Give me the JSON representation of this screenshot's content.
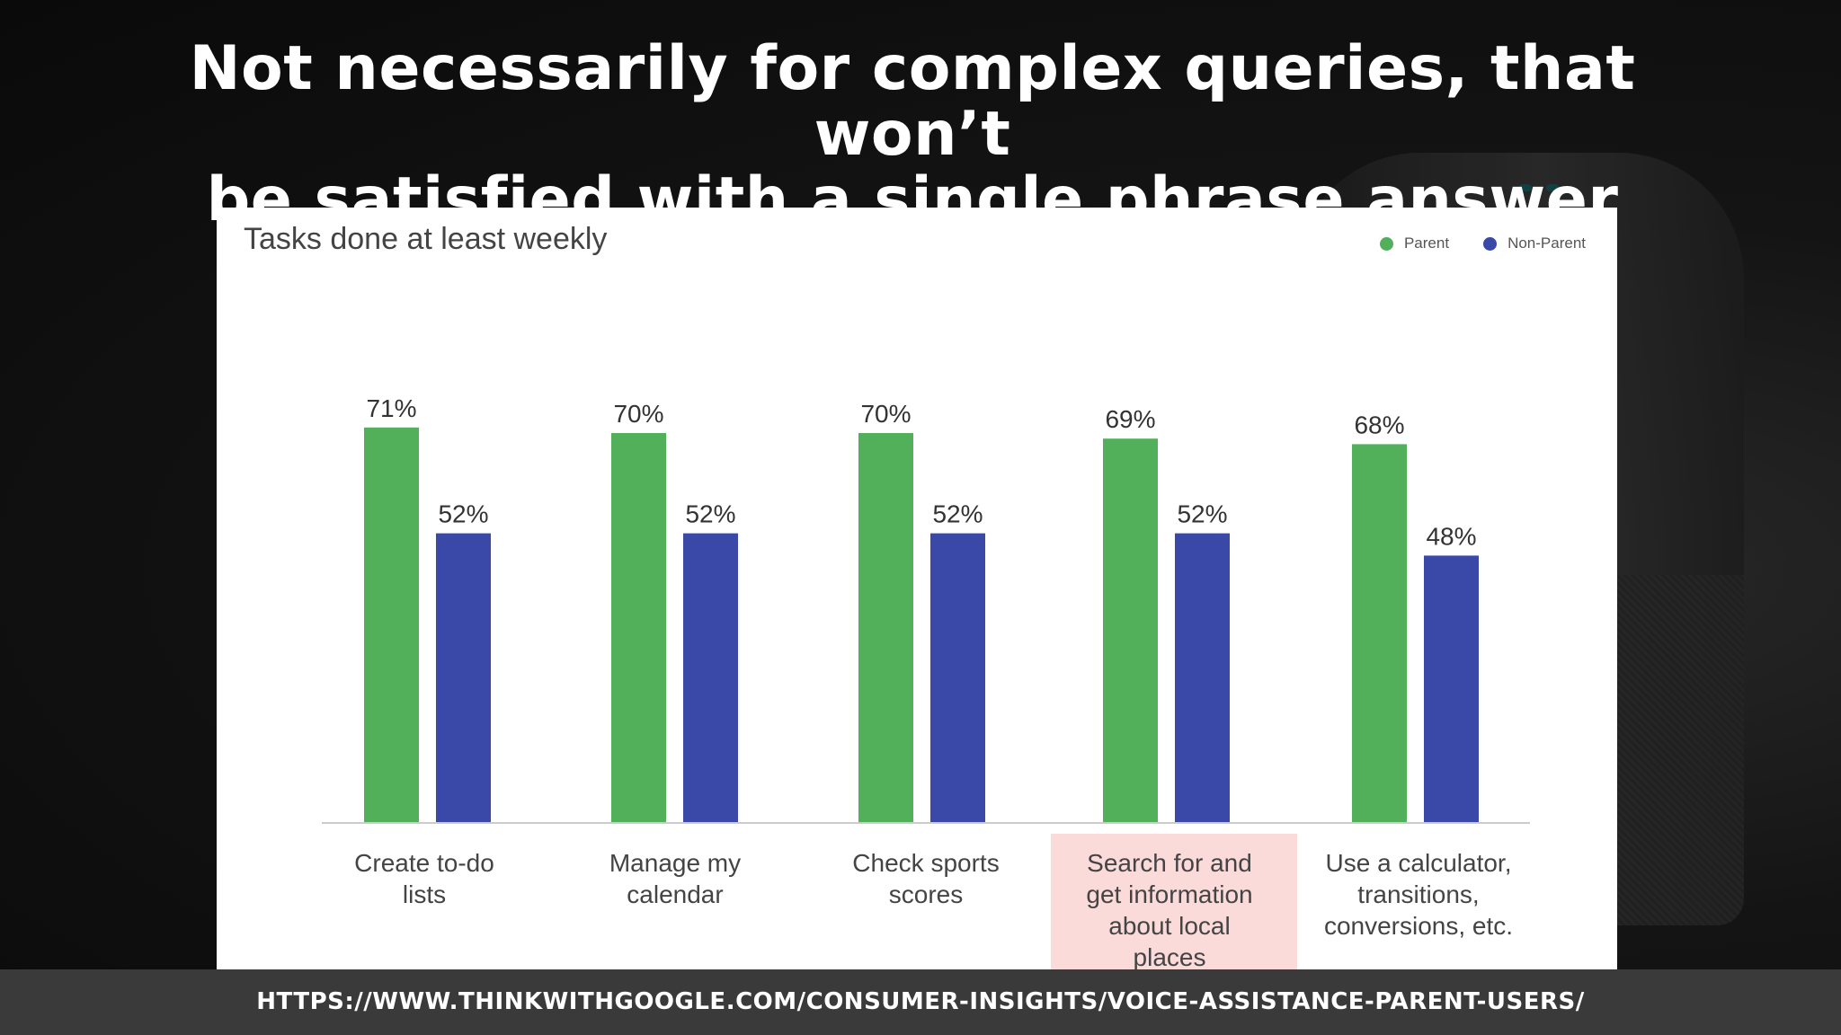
{
  "headline": {
    "line1": "Not necessarily for complex queries, that won’t",
    "line2": "be satisfied with a single phrase answer"
  },
  "footer": {
    "url": "HTTPS://WWW.THINKWITHGOOGLE.COM/CONSUMER-INSIGHTS/VOICE-ASSISTANCE-PARENT-USERS/"
  },
  "colors": {
    "parent": "#52b05a",
    "non_parent": "#3a49a8",
    "highlight": "#fbdada",
    "axis": "#cccccc"
  },
  "chart_data": {
    "type": "bar",
    "title": "Tasks done at least weekly",
    "categories": [
      [
        "Create to-do",
        "lists"
      ],
      [
        "Manage my",
        "calendar"
      ],
      [
        "Check sports",
        "scores"
      ],
      [
        "Search for and",
        "get information",
        "about local",
        "places"
      ],
      [
        "Use a calculator,",
        "transitions,",
        "conversions, etc."
      ]
    ],
    "series": [
      {
        "name": "Parent",
        "values": [
          71,
          70,
          70,
          69,
          68
        ]
      },
      {
        "name": "Non-Parent",
        "values": [
          52,
          52,
          52,
          52,
          48
        ]
      }
    ],
    "value_suffix": "%",
    "ylim": [
      0,
      100
    ],
    "highlighted_category_index": 3,
    "legend_position": "top-right",
    "grid": false
  }
}
